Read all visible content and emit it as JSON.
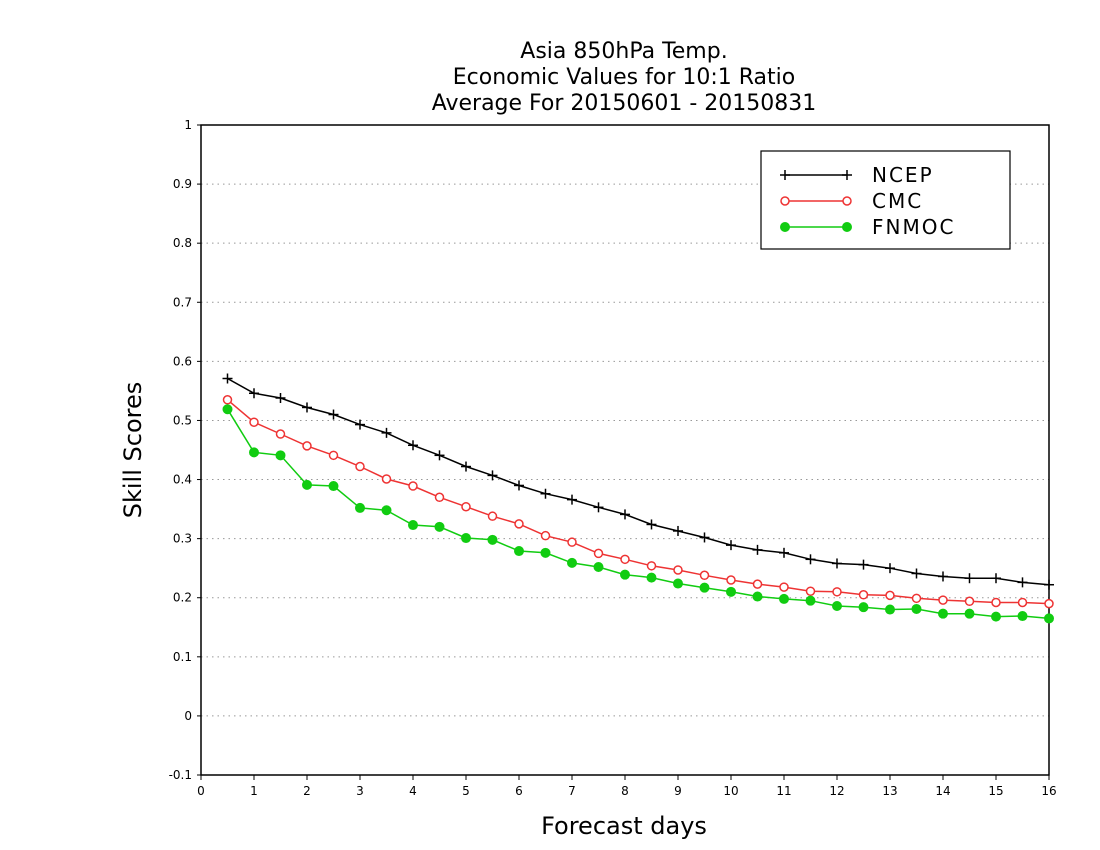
{
  "chart_data": {
    "type": "line",
    "title": [
      "Asia 850hPa Temp.",
      "Economic Values for 10:1 Ratio",
      "Average For 20150601 - 20150831"
    ],
    "xlabel": "Forecast days",
    "ylabel": "Skill Scores",
    "xlim": [
      0,
      16
    ],
    "ylim": [
      -0.1,
      1
    ],
    "xticks": [
      "0",
      "1",
      "2",
      "3",
      "4",
      "5",
      "6",
      "7",
      "8",
      "9",
      "10",
      "11",
      "12",
      "13",
      "14",
      "15",
      "16"
    ],
    "yticks": [
      "-0.1",
      "0",
      "0.1",
      "0.2",
      "0.3",
      "0.4",
      "0.5",
      "0.6",
      "0.7",
      "0.8",
      "0.9",
      "1"
    ],
    "grid": "horizontal dotted",
    "legend_position": "top-right",
    "x": [
      0.5,
      1,
      1.5,
      2,
      2.5,
      3,
      3.5,
      4,
      4.5,
      5,
      5.5,
      6,
      6.5,
      7,
      7.5,
      8,
      8.5,
      9,
      9.5,
      10,
      10.5,
      11,
      11.5,
      12,
      12.5,
      13,
      13.5,
      14,
      14.5,
      15,
      15.5,
      16
    ],
    "series": [
      {
        "name": "NCEP",
        "color": "#000000",
        "marker": "plus",
        "values": [
          0.571,
          0.546,
          0.538,
          0.522,
          0.51,
          0.493,
          0.479,
          0.458,
          0.441,
          0.422,
          0.407,
          0.39,
          0.376,
          0.366,
          0.353,
          0.341,
          0.324,
          0.313,
          0.302,
          0.289,
          0.281,
          0.276,
          0.265,
          0.258,
          0.256,
          0.25,
          0.241,
          0.236,
          0.233,
          0.233,
          0.226,
          0.222
        ]
      },
      {
        "name": "CMC",
        "color": "#ee3333",
        "marker": "open-circle",
        "values": [
          0.535,
          0.497,
          0.477,
          0.457,
          0.441,
          0.422,
          0.401,
          0.389,
          0.37,
          0.354,
          0.338,
          0.325,
          0.305,
          0.294,
          0.275,
          0.265,
          0.254,
          0.247,
          0.238,
          0.23,
          0.223,
          0.218,
          0.211,
          0.21,
          0.205,
          0.204,
          0.199,
          0.196,
          0.194,
          0.192,
          0.192,
          0.19
        ]
      },
      {
        "name": "FNMOC",
        "color": "#11cc11",
        "marker": "filled-circle",
        "values": [
          0.519,
          0.446,
          0.441,
          0.391,
          0.389,
          0.352,
          0.348,
          0.323,
          0.32,
          0.301,
          0.298,
          0.279,
          0.276,
          0.259,
          0.252,
          0.239,
          0.234,
          0.224,
          0.217,
          0.21,
          0.202,
          0.198,
          0.195,
          0.186,
          0.184,
          0.18,
          0.181,
          0.173,
          0.173,
          0.168,
          0.169,
          0.165
        ]
      }
    ]
  }
}
